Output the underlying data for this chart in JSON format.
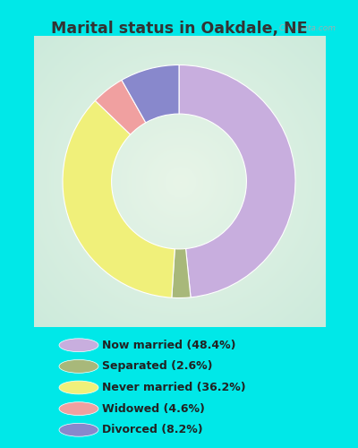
{
  "title": "Marital status in Oakdale, NE",
  "slices": [
    {
      "label": "Now married (48.4%)",
      "value": 48.4,
      "color": "#c8aede"
    },
    {
      "label": "Separated (2.6%)",
      "value": 2.6,
      "color": "#a8b87a"
    },
    {
      "label": "Never married (36.2%)",
      "value": 36.2,
      "color": "#f0f07a"
    },
    {
      "label": "Widowed (4.6%)",
      "value": 4.6,
      "color": "#f0a0a0"
    },
    {
      "label": "Divorced (8.2%)",
      "value": 8.2,
      "color": "#8888cc"
    }
  ],
  "bg_cyan": "#00e8e8",
  "chart_bg_center": "#e8f5e8",
  "chart_bg_edge": "#c8e8d8",
  "title_color": "#333333",
  "watermark": "City-Data.com",
  "donut_width": 0.42,
  "fig_width": 4.0,
  "fig_height": 5.0,
  "dpi": 100
}
